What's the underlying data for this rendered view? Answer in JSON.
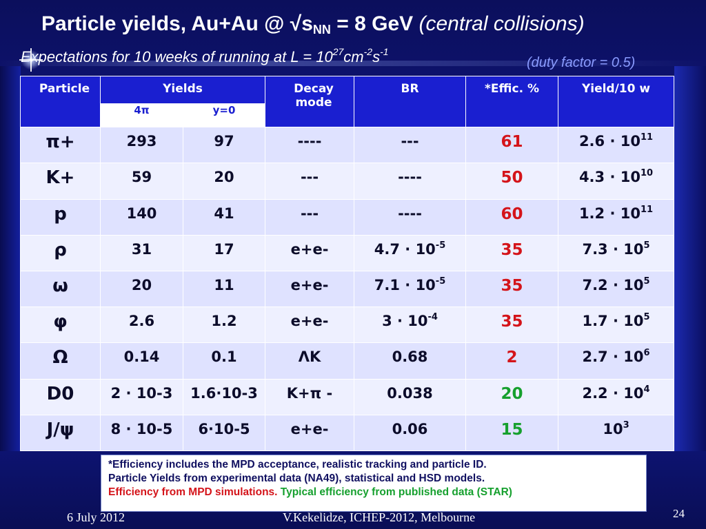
{
  "slide": {
    "title_main": "Particle yields, Au+Au  @ √s",
    "title_sub": "NN",
    "title_rest": " = 8 GeV ",
    "title_italic": "(central collisions)",
    "subtitle_text": "Expectations for 10 weeks of running  at L = 10",
    "subtitle_exp": "27",
    "subtitle_unit1": "cm",
    "subtitle_exp2": "-2",
    "subtitle_unit2": "s",
    "subtitle_exp3": "-1",
    "duty_factor": "(duty factor = 0.5)"
  },
  "table": {
    "headers": {
      "particle": "Particle",
      "yields": "Yields",
      "yield_4pi": "4π",
      "yield_y0": "y=0",
      "decay_mode": "Decay mode",
      "br": "BR",
      "effic": "*Effic. %",
      "yield10w": "Yield/10 w"
    },
    "rows": [
      {
        "particle": "π+",
        "y4pi": "293",
        "y0": "97",
        "decay": "----",
        "br": "---",
        "br_exp": "",
        "effic": "61",
        "effic_color": "red",
        "yield10w": "2.6 · 10",
        "yield10w_exp": "11"
      },
      {
        "particle": "K+",
        "y4pi": "59",
        "y0": "20",
        "decay": "---",
        "br": "----",
        "br_exp": "",
        "effic": "50",
        "effic_color": "red",
        "yield10w": "4.3 · 10",
        "yield10w_exp": "10"
      },
      {
        "particle": "p",
        "y4pi": "140",
        "y0": "41",
        "decay": "---",
        "br": "----",
        "br_exp": "",
        "effic": "60",
        "effic_color": "red",
        "yield10w": "1.2 · 10",
        "yield10w_exp": "11"
      },
      {
        "particle": "ρ",
        "y4pi": "31",
        "y0": "17",
        "decay": "e+e-",
        "br": "4.7 · 10",
        "br_exp": "-5",
        "effic": "35",
        "effic_color": "red",
        "yield10w": "7.3 · 10",
        "yield10w_exp": "5"
      },
      {
        "particle": "ω",
        "y4pi": "20",
        "y0": "11",
        "decay": "e+e-",
        "br": "7.1 · 10",
        "br_exp": "-5",
        "effic": "35",
        "effic_color": "red",
        "yield10w": "7.2 · 10",
        "yield10w_exp": "5"
      },
      {
        "particle": "φ",
        "y4pi": "2.6",
        "y0": "1.2",
        "decay": "e+e-",
        "br": "3 · 10",
        "br_exp": "-4",
        "effic": "35",
        "effic_color": "red",
        "yield10w": "1.7 · 10",
        "yield10w_exp": "5"
      },
      {
        "particle": "Ω",
        "y4pi": "0.14",
        "y0": "0.1",
        "decay": "ΛK",
        "br": "0.68",
        "br_exp": "",
        "effic": "2",
        "effic_color": "red",
        "yield10w": "2.7 · 10",
        "yield10w_exp": "6"
      },
      {
        "particle": "D0",
        "y4pi": "2 · 10-3",
        "y0": "1.6·10-3",
        "decay": "K+π -",
        "br": "0.038",
        "br_exp": "",
        "effic": "20",
        "effic_color": "green",
        "yield10w": "2.2 · 10",
        "yield10w_exp": "4"
      },
      {
        "particle": "J/ψ",
        "y4pi": "8 · 10-5",
        "y0": "6·10-5",
        "decay": "e+e-",
        "br": "0.06",
        "br_exp": "",
        "effic": "15",
        "effic_color": "green",
        "yield10w": "10",
        "yield10w_exp": "3"
      }
    ]
  },
  "note": {
    "line1": "*Efficiency includes the MPD acceptance, realistic tracking and particle ID.",
    "line2": "Particle Yields from experimental data (NA49), statistical and HSD models.",
    "line3_red": "Efficiency from MPD simulations.",
    "line3_green": "Typical  efficiency from published data (STAR)"
  },
  "footer": {
    "date": "6 July 2012",
    "author": "V.Kekelidze, ICHEP-2012, Melbourne",
    "page": "24"
  },
  "colors": {
    "header_bg": "#1a1fd0",
    "eff_red": "#d4141a",
    "eff_green": "#16a02e"
  }
}
